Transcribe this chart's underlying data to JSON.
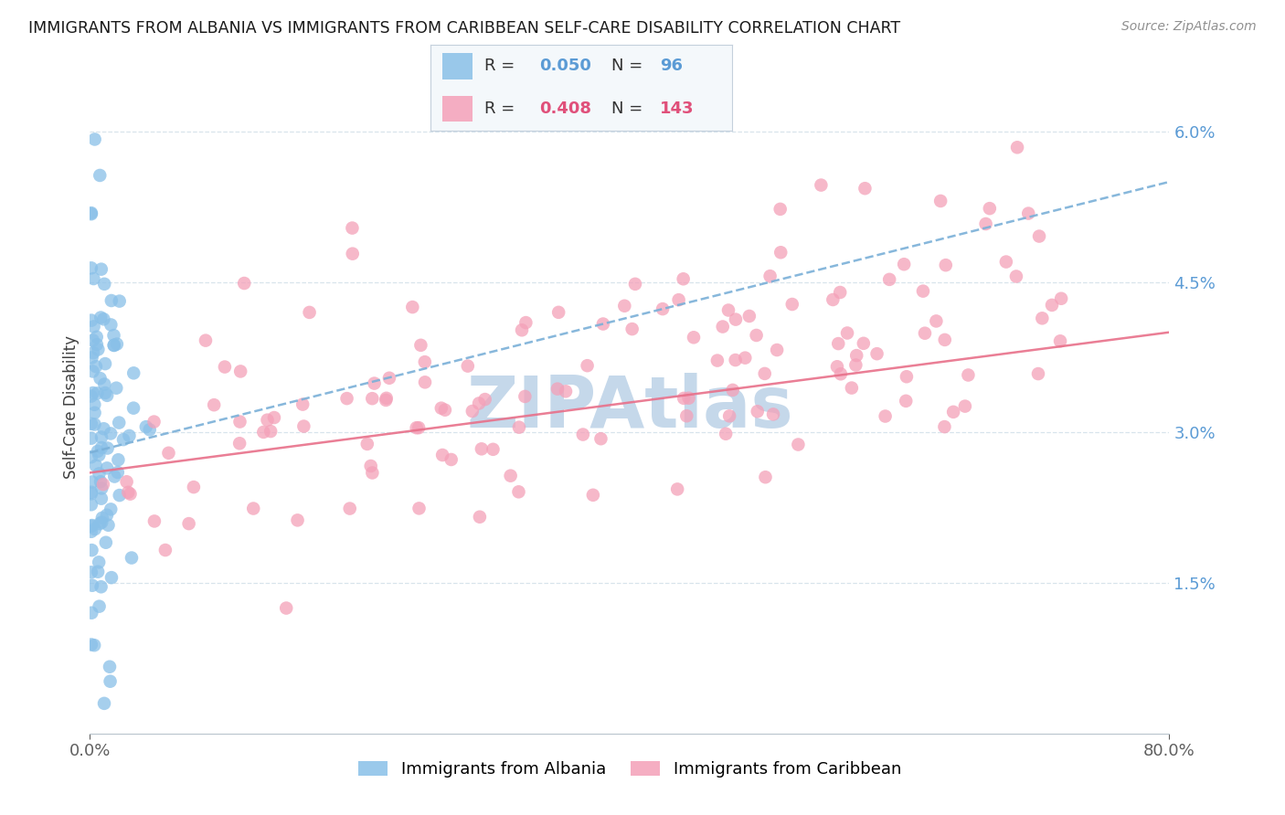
{
  "title": "IMMIGRANTS FROM ALBANIA VS IMMIGRANTS FROM CARIBBEAN SELF-CARE DISABILITY CORRELATION CHART",
  "source": "Source: ZipAtlas.com",
  "ylabel": "Self-Care Disability",
  "xlim": [
    0.0,
    0.8
  ],
  "ylim": [
    0.0,
    0.065
  ],
  "albania_R": 0.05,
  "albania_N": 96,
  "caribbean_R": 0.408,
  "caribbean_N": 143,
  "albania_color": "#89c0e8",
  "caribbean_color": "#f4a0b8",
  "albania_line_color": "#7ab0d8",
  "caribbean_line_color": "#e8708a",
  "watermark": "ZIPAtlas",
  "watermark_color": "#c5d8ea",
  "grid_color": "#d8e4ec",
  "ytick_vals": [
    0.015,
    0.03,
    0.045,
    0.06
  ],
  "ytick_labels": [
    "1.5%",
    "3.0%",
    "4.5%",
    "6.0%"
  ],
  "alb_line_x0": 0.0,
  "alb_line_x1": 0.8,
  "alb_line_y0": 0.028,
  "alb_line_y1": 0.055,
  "car_line_x0": 0.0,
  "car_line_x1": 0.8,
  "car_line_y0": 0.026,
  "car_line_y1": 0.04
}
